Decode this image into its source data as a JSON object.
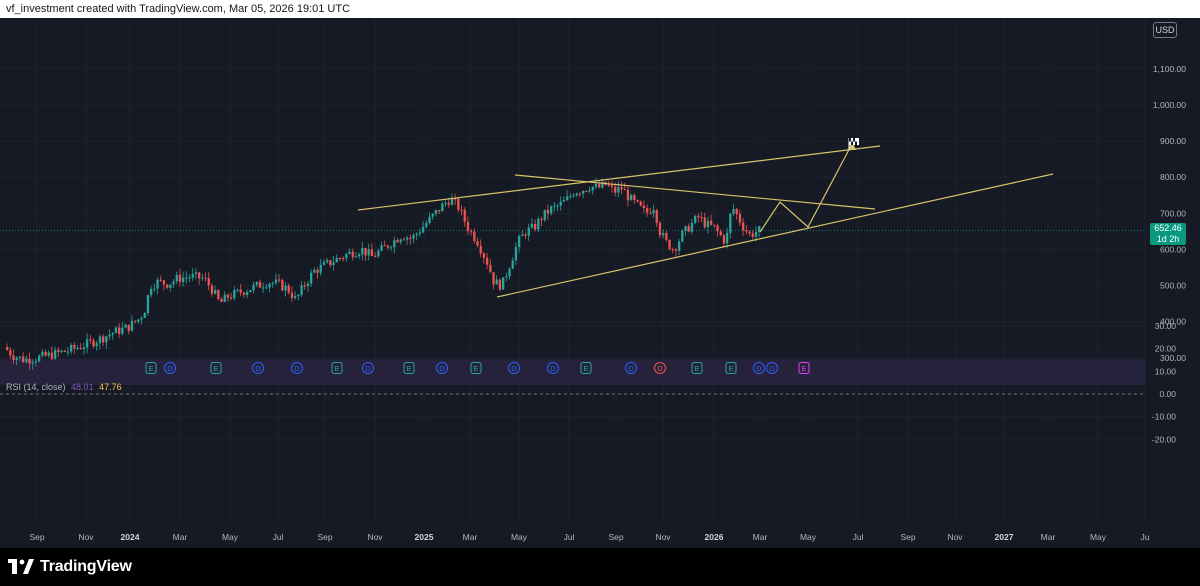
{
  "header": {
    "attribution": "vf_investment created with TradingView.com, Mar 05, 2026 19:01 UTC"
  },
  "price_scale": {
    "currency": "USD",
    "labels": [
      "1,100.00",
      "1,000.00",
      "900.00",
      "800.00",
      "700.00",
      "600.00",
      "500.00",
      "400.00",
      "300.00"
    ]
  },
  "last_price": {
    "value": "652.46",
    "countdown": "1d 2h",
    "color": "#089981"
  },
  "rsi": {
    "legend": "RSI (14, close)",
    "value_1": "48.01",
    "value_2": "47.76",
    "labels": [
      "30.00",
      "20.00",
      "10.00",
      "0.00",
      "-10.00",
      "-20.00"
    ]
  },
  "time_axis": {
    "labels": [
      "Sep",
      "Nov",
      "2024",
      "Mar",
      "May",
      "Jul",
      "Sep",
      "Nov",
      "2025",
      "Mar",
      "May",
      "Jul",
      "Sep",
      "Nov",
      "2026",
      "Mar",
      "May",
      "Jul",
      "Sep",
      "Nov",
      "2027",
      "Mar",
      "May",
      "Ju"
    ]
  },
  "events": [
    {
      "type": "E",
      "kind": "earnings"
    },
    {
      "type": "D",
      "kind": "dividend"
    },
    {
      "type": "E",
      "kind": "earnings"
    },
    {
      "type": "D",
      "kind": "dividend"
    },
    {
      "type": "D",
      "kind": "dividend"
    },
    {
      "type": "E",
      "kind": "earnings"
    },
    {
      "type": "D",
      "kind": "dividend"
    },
    {
      "type": "E",
      "kind": "earnings"
    },
    {
      "type": "D",
      "kind": "dividend"
    },
    {
      "type": "E",
      "kind": "earnings"
    },
    {
      "type": "D",
      "kind": "dividend"
    },
    {
      "type": "D",
      "kind": "dividend"
    },
    {
      "type": "E",
      "kind": "earnings"
    },
    {
      "type": "D",
      "kind": "dividend"
    },
    {
      "type": "D",
      "kind": "dividend"
    },
    {
      "type": "E",
      "kind": "earnings"
    },
    {
      "type": "E",
      "kind": "earnings"
    },
    {
      "type": "D",
      "kind": "dividend"
    },
    {
      "type": "D",
      "kind": "dividend"
    },
    {
      "type": "E",
      "kind": "earnings"
    }
  ],
  "colors": {
    "up": "#26a69a",
    "down": "#ef5350",
    "trendline": "#d9c36a",
    "background": "#161a25",
    "rsi_band": "#2a2440"
  },
  "footer": {
    "brand": "TradingView"
  }
}
